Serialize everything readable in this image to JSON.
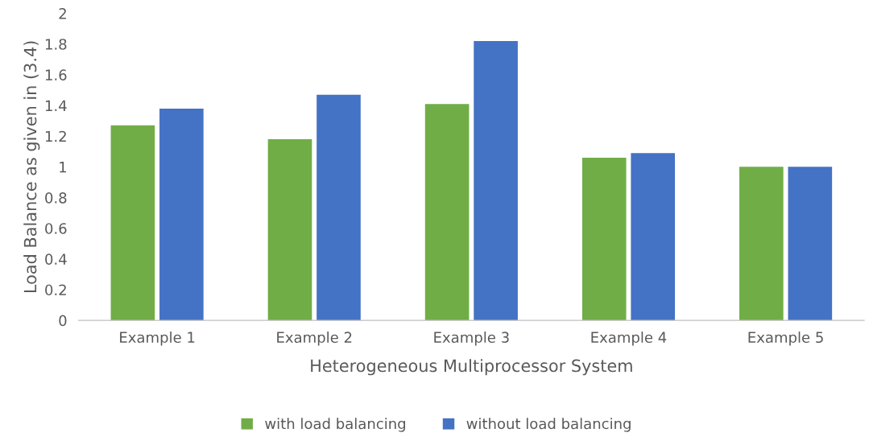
{
  "chart_data": {
    "type": "bar",
    "xlabel": "Heterogeneous Multiprocessor System",
    "ylabel": "Load Balance as given in (3.4)",
    "categories": [
      "Example 1",
      "Example 2",
      "Example 3",
      "Example 4",
      "Example 5"
    ],
    "series": [
      {
        "name": "with load balancing",
        "color": "#70ad47",
        "values": [
          1.27,
          1.18,
          1.41,
          1.06,
          1.0
        ]
      },
      {
        "name": "without load balancing",
        "color": "#4472c4",
        "values": [
          1.38,
          1.47,
          1.82,
          1.09,
          1.0
        ]
      }
    ],
    "ylim": [
      0,
      2
    ],
    "yticks": [
      0,
      {
        "value": 0.2,
        "label": "0.2"
      },
      {
        "value": 0.4,
        "label": "0.4"
      },
      {
        "value": 0.6,
        "label": "0.6"
      },
      {
        "value": 0.8,
        "label": "0.8"
      },
      1,
      {
        "value": 1.2,
        "label": "1.2"
      },
      {
        "value": 1.4,
        "label": "1.4"
      },
      {
        "value": 1.6,
        "label": "1.6"
      },
      {
        "value": 1.8,
        "label": "1.8"
      },
      2
    ],
    "grid": false,
    "legend": "bottom"
  }
}
